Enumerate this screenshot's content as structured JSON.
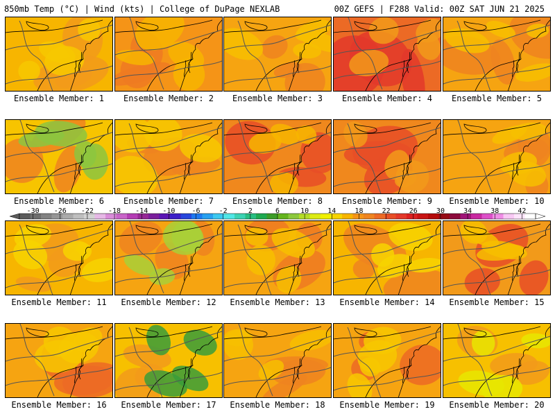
{
  "header": {
    "left": "850mb Temp (°C) | Wind (kts) | College of DuPage NEXLAB",
    "right": "00Z GEFS | F288 Valid: 00Z SAT JUN 21 2025"
  },
  "panels": [
    {
      "label": "Ensemble Member: 1",
      "base": "#f7b500",
      "blobs": [
        [
          "#f29a1a",
          0.6
        ],
        [
          "#f7c800",
          0.3
        ]
      ]
    },
    {
      "label": "Ensemble Member: 2",
      "base": "#f59417",
      "blobs": [
        [
          "#ee7a22",
          0.6
        ],
        [
          "#f7b500",
          0.4
        ]
      ]
    },
    {
      "label": "Ensemble Member: 3",
      "base": "#f6a411",
      "blobs": [
        [
          "#ef8420",
          0.5
        ],
        [
          "#f7c000",
          0.3
        ]
      ]
    },
    {
      "label": "Ensemble Member: 4",
      "base": "#ec6a25",
      "blobs": [
        [
          "#e3382a",
          0.7
        ],
        [
          "#f29a1a",
          0.3
        ]
      ]
    },
    {
      "label": "Ensemble Member: 5",
      "base": "#f6a411",
      "blobs": [
        [
          "#ef8420",
          0.5
        ],
        [
          "#f7c000",
          0.3
        ]
      ]
    },
    {
      "label": "Ensemble Member: 6",
      "base": "#f7c400",
      "blobs": [
        [
          "#ef8420",
          0.5
        ],
        [
          "#8cc63f",
          0.4
        ]
      ]
    },
    {
      "label": "Ensemble Member: 7",
      "base": "#f6a411",
      "blobs": [
        [
          "#ef8420",
          0.4
        ],
        [
          "#f7c800",
          0.4
        ]
      ]
    },
    {
      "label": "Ensemble Member: 8",
      "base": "#f0881d",
      "blobs": [
        [
          "#e84e27",
          0.5
        ],
        [
          "#f7b500",
          0.3
        ]
      ]
    },
    {
      "label": "Ensemble Member: 9",
      "base": "#f0881d",
      "blobs": [
        [
          "#e84e27",
          0.6
        ],
        [
          "#f29a1a",
          0.3
        ]
      ]
    },
    {
      "label": "Ensemble Member: 10",
      "base": "#f6a411",
      "blobs": [
        [
          "#ef8420",
          0.6
        ],
        [
          "#f7c000",
          0.2
        ]
      ]
    },
    {
      "label": "Ensemble Member: 11",
      "base": "#f7b500",
      "blobs": [
        [
          "#f29a1a",
          0.5
        ],
        [
          "#f7d400",
          0.3
        ]
      ]
    },
    {
      "label": "Ensemble Member: 12",
      "base": "#f6a411",
      "blobs": [
        [
          "#ef8420",
          0.5
        ],
        [
          "#a8d038",
          0.3
        ]
      ]
    },
    {
      "label": "Ensemble Member: 13",
      "base": "#f6a411",
      "blobs": [
        [
          "#ee7a22",
          0.5
        ],
        [
          "#f7c000",
          0.3
        ]
      ]
    },
    {
      "label": "Ensemble Member: 14",
      "base": "#f7b500",
      "blobs": [
        [
          "#ef8420",
          0.5
        ],
        [
          "#f7d400",
          0.3
        ]
      ]
    },
    {
      "label": "Ensemble Member: 15",
      "base": "#f29a1a",
      "blobs": [
        [
          "#e84e27",
          0.4
        ],
        [
          "#f7c000",
          0.3
        ]
      ]
    },
    {
      "label": "Ensemble Member: 16",
      "base": "#f6a411",
      "blobs": [
        [
          "#ec6a25",
          0.5
        ],
        [
          "#f7c800",
          0.3
        ]
      ]
    },
    {
      "label": "Ensemble Member: 17",
      "base": "#f7c000",
      "blobs": [
        [
          "#f29a1a",
          0.4
        ],
        [
          "#3a9c3a",
          0.3
        ]
      ]
    },
    {
      "label": "Ensemble Member: 18",
      "base": "#f6a411",
      "blobs": [
        [
          "#ef8420",
          0.5
        ],
        [
          "#f7c000",
          0.3
        ]
      ]
    },
    {
      "label": "Ensemble Member: 19",
      "base": "#f6a411",
      "blobs": [
        [
          "#ec6a25",
          0.5
        ],
        [
          "#f7c800",
          0.3
        ]
      ]
    },
    {
      "label": "Ensemble Member: 20",
      "base": "#f7c000",
      "blobs": [
        [
          "#f29a1a",
          0.5
        ],
        [
          "#e7e600",
          0.3
        ]
      ]
    }
  ],
  "colorbar": {
    "min": -32,
    "max": 44,
    "ticks": [
      -30,
      -26,
      -22,
      -18,
      -14,
      -10,
      -6,
      -2,
      2,
      6,
      10,
      14,
      18,
      22,
      26,
      30,
      34,
      38,
      42
    ],
    "colors": [
      "#5a5a5a",
      "#6e6e6e",
      "#828282",
      "#969696",
      "#aaaaaa",
      "#bebebe",
      "#d2d2d2",
      "#e6b8e6",
      "#d98cd9",
      "#c864c8",
      "#b43cb4",
      "#962896",
      "#7a1e9c",
      "#5a14b4",
      "#3c1ec8",
      "#2846dc",
      "#1e78f0",
      "#28a0f0",
      "#3cc8f0",
      "#50e6e6",
      "#3cd2b4",
      "#28be82",
      "#1eaa50",
      "#3c9c28",
      "#64b41e",
      "#8cc83c",
      "#b4dc28",
      "#dceb14",
      "#f0f000",
      "#f7d400",
      "#f7b500",
      "#f59417",
      "#ef8420",
      "#ec6a25",
      "#e84e27",
      "#e3382a",
      "#dc2020",
      "#c81414",
      "#b40a0a",
      "#960a14",
      "#8c0a3c",
      "#a01478",
      "#c828a0",
      "#dc50c8",
      "#f08ce6",
      "#f8c8f4",
      "#fde4fb",
      "#ffffff"
    ]
  }
}
